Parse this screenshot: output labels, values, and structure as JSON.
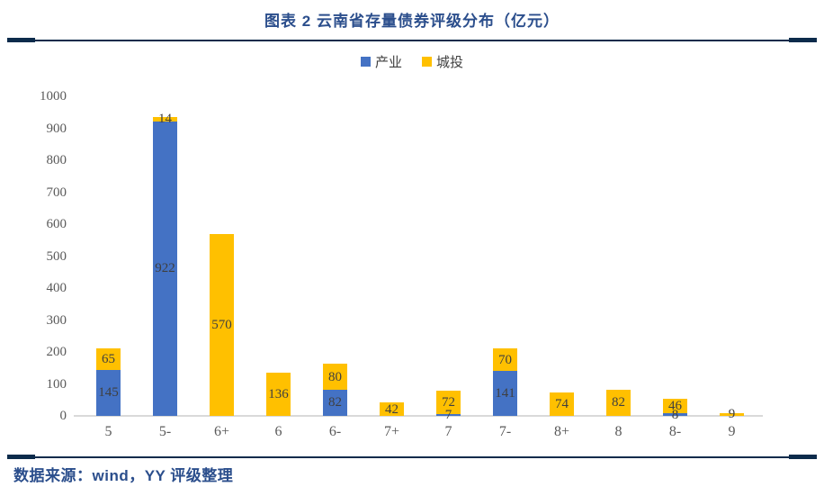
{
  "header": {
    "title": "图表 2 云南省存量债券评级分布（亿元）"
  },
  "footer": {
    "source": "数据来源：wind，YY 评级整理"
  },
  "colors": {
    "accent": "#2b4e8c",
    "rule": "#0c2b4b",
    "industry_blue": "#4472C4",
    "chengtou_yellow": "#FFC000",
    "axis_text": "#595959",
    "value_text": "#3f3f3f",
    "baseline": "#d9d9d9"
  },
  "chart_data": {
    "type": "bar",
    "stacked": true,
    "title": "图表 2 云南省存量债券评级分布（亿元）",
    "xlabel": "",
    "ylabel": "",
    "categories": [
      "5",
      "5-",
      "6+",
      "6",
      "6-",
      "7+",
      "7",
      "7-",
      "8+",
      "8",
      "8-",
      "9"
    ],
    "series": [
      {
        "key": "industry",
        "name": "产业",
        "color": "#4472C4",
        "values": [
          145,
          922,
          0,
          0,
          82,
          0,
          7,
          141,
          0,
          0,
          8,
          0
        ]
      },
      {
        "key": "chengtou",
        "name": "城投",
        "color": "#FFC000",
        "values": [
          65,
          14,
          570,
          136,
          80,
          42,
          72,
          70,
          74,
          82,
          46,
          9
        ]
      }
    ],
    "ylim": [
      0,
      1000
    ],
    "yticks": [
      0,
      100,
      200,
      300,
      400,
      500,
      600,
      700,
      800,
      900,
      1000
    ],
    "grid": false,
    "legend_position": "top-center",
    "value_labels": "segment-center"
  }
}
